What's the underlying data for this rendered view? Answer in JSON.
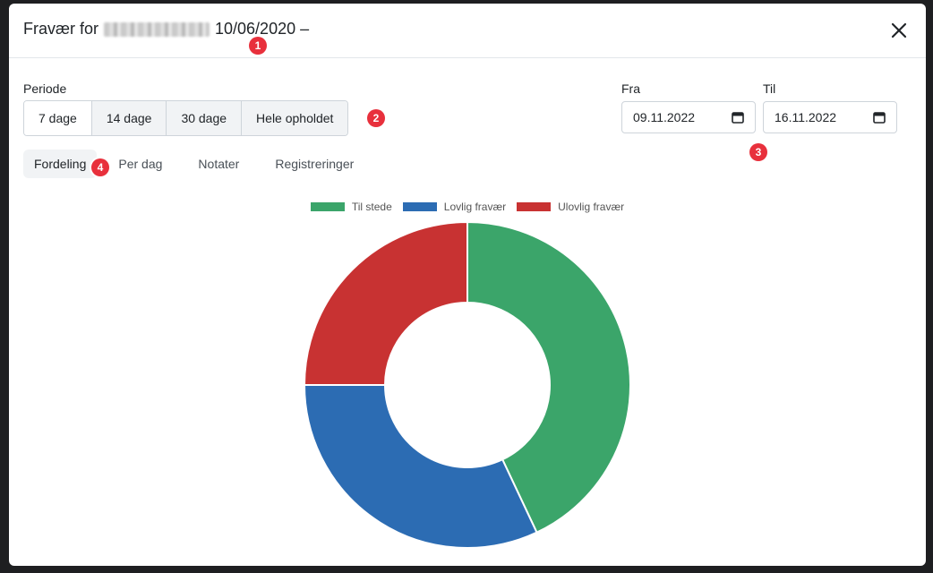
{
  "header": {
    "title_prefix": "Fravær for",
    "title_date": "10/06/2020 –",
    "close_label": "✕"
  },
  "markers": [
    "1",
    "2",
    "3",
    "4"
  ],
  "periode": {
    "label": "Periode",
    "buttons": [
      "7 dage",
      "14 dage",
      "30 dage",
      "Hele opholdet"
    ]
  },
  "dates": {
    "from_label": "Fra",
    "from_value": "09.11.2022",
    "to_label": "Til",
    "to_value": "16.11.2022"
  },
  "tabs": [
    "Fordeling",
    "Per dag",
    "Notater",
    "Registreringer"
  ],
  "chart_data": {
    "type": "pie",
    "variant": "doughnut",
    "categories": [
      "Til stede",
      "Lovlig fravær",
      "Ulovlig fravær"
    ],
    "values": [
      43,
      32,
      25
    ],
    "colors": [
      "#3ba56a",
      "#2c6cb3",
      "#c83232"
    ],
    "legend": "top"
  }
}
